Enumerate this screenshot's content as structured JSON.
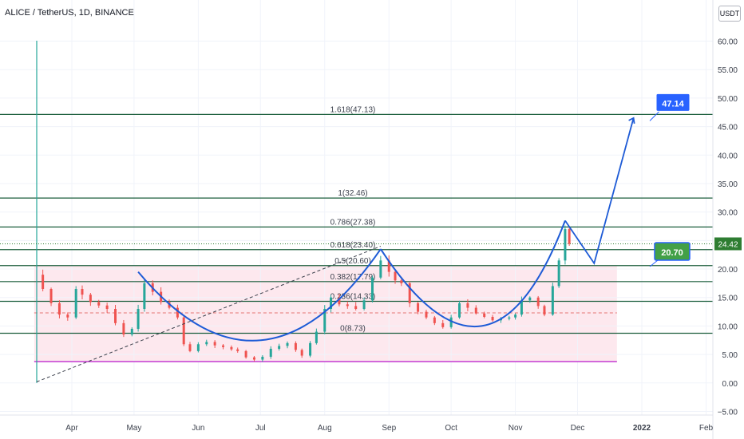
{
  "header": {
    "title": "ALICE / TetherUS, 1D, BINANCE",
    "currency": "USDT"
  },
  "colors": {
    "up": "#26a69a",
    "down": "#ef5350",
    "fib_line": "#1b5e3c",
    "annotation": "#1e5bd6",
    "zone_fill": "#fde8ee",
    "support": "#c43bd0",
    "mean_line": "#e57373",
    "current_bg": "#2e7d32",
    "label_bg": "#2962ff"
  },
  "chart_data": {
    "type": "candlestick",
    "title": "ALICE / TetherUS, 1D, BINANCE",
    "y_axis": {
      "range": [
        -5,
        60
      ],
      "ticks": [
        "60.00",
        "55.00",
        "50.00",
        "45.00",
        "40.00",
        "35.00",
        "30.00",
        "25.00",
        "20.00",
        "15.00",
        "10.00",
        "5.00",
        "0.00",
        "−5.00"
      ]
    },
    "x_axis": {
      "range": [
        "2021-03-15",
        "2022-02-10"
      ],
      "ticks": [
        {
          "label": "Apr",
          "date": "2021-04-01"
        },
        {
          "label": "May",
          "date": "2021-05-01"
        },
        {
          "label": "Jun",
          "date": "2021-06-01"
        },
        {
          "label": "Jul",
          "date": "2021-07-01"
        },
        {
          "label": "Aug",
          "date": "2021-08-01"
        },
        {
          "label": "Sep",
          "date": "2021-09-01"
        },
        {
          "label": "Oct",
          "date": "2021-10-01"
        },
        {
          "label": "Nov",
          "date": "2021-11-01"
        },
        {
          "label": "Dec",
          "date": "2021-12-01"
        },
        {
          "label": "2022",
          "date": "2022-01-01"
        },
        {
          "label": "Feb",
          "date": "2022-02-01"
        }
      ]
    },
    "fib_levels": [
      {
        "label": "1.618(47.13)",
        "value": 47.13
      },
      {
        "label": "1(32.46)",
        "value": 32.46
      },
      {
        "label": "0.786(27.38)",
        "value": 27.38
      },
      {
        "label": "0.618(23.40)",
        "value": 23.4
      },
      {
        "label": "0.5(20.60)",
        "value": 20.6
      },
      {
        "label": "0.382(17.79)",
        "value": 17.79
      },
      {
        "label": "0.236(14.33)",
        "value": 14.33
      },
      {
        "label": "0(8.73)",
        "value": 8.73
      }
    ],
    "support_line": 3.75,
    "mean_line": 12.3,
    "zone": {
      "from": 3.75,
      "to": 20.6,
      "start": "2021-03-15",
      "end": "2021-12-20"
    },
    "close_series": [
      [
        "2021-03-15",
        19.0
      ],
      [
        "2021-03-18",
        16.5
      ],
      [
        "2021-03-22",
        14.0
      ],
      [
        "2021-03-26",
        12.0
      ],
      [
        "2021-03-30",
        11.5
      ],
      [
        "2021-04-03",
        16.5
      ],
      [
        "2021-04-06",
        15.5
      ],
      [
        "2021-04-10",
        14.2
      ],
      [
        "2021-04-14",
        13.6
      ],
      [
        "2021-04-18",
        13.0
      ],
      [
        "2021-04-22",
        10.5
      ],
      [
        "2021-04-26",
        8.5
      ],
      [
        "2021-04-30",
        9.5
      ],
      [
        "2021-05-03",
        13.0
      ],
      [
        "2021-05-06",
        17.5
      ],
      [
        "2021-05-10",
        16.0
      ],
      [
        "2021-05-14",
        14.2
      ],
      [
        "2021-05-18",
        13.2
      ],
      [
        "2021-05-22",
        11.5
      ],
      [
        "2021-05-25",
        6.8
      ],
      [
        "2021-05-28",
        5.6
      ],
      [
        "2021-06-01",
        6.8
      ],
      [
        "2021-06-05",
        7.2
      ],
      [
        "2021-06-09",
        6.6
      ],
      [
        "2021-06-13",
        6.3
      ],
      [
        "2021-06-17",
        5.9
      ],
      [
        "2021-06-20",
        5.6
      ],
      [
        "2021-06-24",
        4.5
      ],
      [
        "2021-06-28",
        4.1
      ],
      [
        "2021-07-02",
        4.6
      ],
      [
        "2021-07-06",
        6.0
      ],
      [
        "2021-07-10",
        6.5
      ],
      [
        "2021-07-14",
        7.0
      ],
      [
        "2021-07-18",
        5.8
      ],
      [
        "2021-07-21",
        4.8
      ],
      [
        "2021-07-25",
        7.0
      ],
      [
        "2021-07-28",
        9.0
      ],
      [
        "2021-08-01",
        13.0
      ],
      [
        "2021-08-04",
        15.0
      ],
      [
        "2021-08-08",
        13.8
      ],
      [
        "2021-08-12",
        13.5
      ],
      [
        "2021-08-16",
        13.0
      ],
      [
        "2021-08-20",
        14.5
      ],
      [
        "2021-08-24",
        18.5
      ],
      [
        "2021-08-28",
        21.5
      ],
      [
        "2021-09-01",
        19.5
      ],
      [
        "2021-09-04",
        18.0
      ],
      [
        "2021-09-07",
        17.5
      ],
      [
        "2021-09-11",
        14.0
      ],
      [
        "2021-09-15",
        12.5
      ],
      [
        "2021-09-19",
        11.5
      ],
      [
        "2021-09-23",
        10.5
      ],
      [
        "2021-09-27",
        9.8
      ],
      [
        "2021-10-01",
        11.5
      ],
      [
        "2021-10-05",
        14.0
      ],
      [
        "2021-10-09",
        13.2
      ],
      [
        "2021-10-13",
        12.2
      ],
      [
        "2021-10-17",
        11.6
      ],
      [
        "2021-10-21",
        11.0
      ],
      [
        "2021-10-25",
        11.3
      ],
      [
        "2021-10-29",
        11.5
      ],
      [
        "2021-11-01",
        12.0
      ],
      [
        "2021-11-04",
        14.5
      ],
      [
        "2021-11-08",
        15.0
      ],
      [
        "2021-11-12",
        13.5
      ],
      [
        "2021-11-15",
        12.0
      ],
      [
        "2021-11-19",
        17.0
      ],
      [
        "2021-11-22",
        21.5
      ],
      [
        "2021-11-25",
        27.0
      ],
      [
        "2021-11-27",
        24.42
      ]
    ],
    "annotations": {
      "current_price": "24.42",
      "target_label": "20.70",
      "projection_label": "47.14"
    }
  }
}
